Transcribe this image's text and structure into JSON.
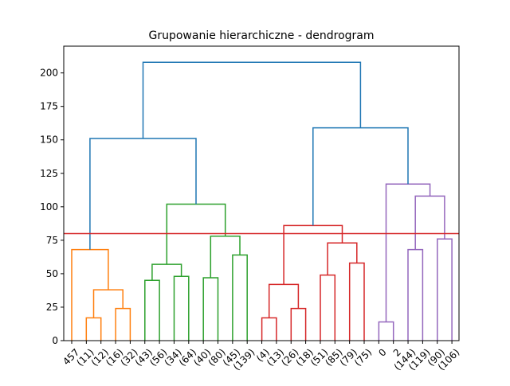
{
  "chart_data": {
    "type": "dendrogram",
    "title": "Grupowanie hierarchiczne - dendrogram",
    "xlabel": "",
    "ylabel": "",
    "ylim": [
      0,
      220
    ],
    "yticks": [
      0,
      25,
      50,
      75,
      100,
      125,
      150,
      175,
      200
    ],
    "leaf_labels": [
      "457",
      "(11)",
      "(12)",
      "(16)",
      "(32)",
      "(43)",
      "(56)",
      "(34)",
      "(64)",
      "(40)",
      "(80)",
      "(45)",
      "(139)",
      "(4)",
      "(13)",
      "(26)",
      "(18)",
      "(51)",
      "(85)",
      "(79)",
      "(75)",
      "0",
      "2",
      "(144)",
      "(119)",
      "(90)",
      "(106)"
    ],
    "cut_height": 80,
    "cut_line_color": "#d62728",
    "above_threshold_color": "#1f77b4",
    "cluster_colors": [
      "#ff7f0e",
      "#2ca02c",
      "#d62728",
      "#9467bd"
    ],
    "merges": [
      {
        "left_x": 1,
        "right_x": 2,
        "left_h": 0,
        "right_h": 0,
        "height": 17,
        "color": "#ff7f0e"
      },
      {
        "left_x": 3,
        "right_x": 4,
        "left_h": 0,
        "right_h": 0,
        "height": 24,
        "color": "#ff7f0e"
      },
      {
        "left_x": 1.5,
        "right_x": 3.5,
        "left_h": 17,
        "right_h": 24,
        "height": 38,
        "color": "#ff7f0e"
      },
      {
        "left_x": 0,
        "right_x": 2.5,
        "left_h": 0,
        "right_h": 38,
        "height": 68,
        "color": "#ff7f0e"
      },
      {
        "left_x": 5,
        "right_x": 6,
        "left_h": 0,
        "right_h": 0,
        "height": 45,
        "color": "#2ca02c"
      },
      {
        "left_x": 7,
        "right_x": 8,
        "left_h": 0,
        "right_h": 0,
        "height": 48,
        "color": "#2ca02c"
      },
      {
        "left_x": 5.5,
        "right_x": 7.5,
        "left_h": 45,
        "right_h": 48,
        "height": 57,
        "color": "#2ca02c"
      },
      {
        "left_x": 9,
        "right_x": 10,
        "left_h": 0,
        "right_h": 0,
        "height": 47,
        "color": "#2ca02c"
      },
      {
        "left_x": 11,
        "right_x": 12,
        "left_h": 0,
        "right_h": 0,
        "height": 64,
        "color": "#2ca02c"
      },
      {
        "left_x": 9.5,
        "right_x": 11.5,
        "left_h": 47,
        "right_h": 64,
        "height": 78,
        "color": "#2ca02c"
      },
      {
        "left_x": 6.5,
        "right_x": 10.5,
        "left_h": 57,
        "right_h": 78,
        "height": 102,
        "color": "#2ca02c"
      },
      {
        "left_x": 13,
        "right_x": 14,
        "left_h": 0,
        "right_h": 0,
        "height": 17,
        "color": "#d62728"
      },
      {
        "left_x": 15,
        "right_x": 16,
        "left_h": 0,
        "right_h": 0,
        "height": 24,
        "color": "#d62728"
      },
      {
        "left_x": 13.5,
        "right_x": 15.5,
        "left_h": 17,
        "right_h": 24,
        "height": 42,
        "color": "#d62728"
      },
      {
        "left_x": 17,
        "right_x": 18,
        "left_h": 0,
        "right_h": 0,
        "height": 49,
        "color": "#d62728"
      },
      {
        "left_x": 19,
        "right_x": 20,
        "left_h": 0,
        "right_h": 0,
        "height": 58,
        "color": "#d62728"
      },
      {
        "left_x": 17.5,
        "right_x": 19.5,
        "left_h": 49,
        "right_h": 58,
        "height": 73,
        "color": "#d62728"
      },
      {
        "left_x": 14.5,
        "right_x": 18.5,
        "left_h": 42,
        "right_h": 73,
        "height": 86,
        "color": "#d62728"
      },
      {
        "left_x": 21,
        "right_x": 22,
        "left_h": 0,
        "right_h": 0,
        "height": 14,
        "color": "#9467bd"
      },
      {
        "left_x": 23,
        "right_x": 24,
        "left_h": 0,
        "right_h": 0,
        "height": 68,
        "color": "#9467bd"
      },
      {
        "left_x": 25,
        "right_x": 26,
        "left_h": 0,
        "right_h": 0,
        "height": 76,
        "color": "#9467bd"
      },
      {
        "left_x": 23.5,
        "right_x": 25.5,
        "left_h": 68,
        "right_h": 76,
        "height": 108,
        "color": "#9467bd"
      },
      {
        "left_x": 21.5,
        "right_x": 24.5,
        "left_h": 14,
        "right_h": 108,
        "height": 117,
        "color": "#9467bd"
      },
      {
        "left_x": 1.25,
        "right_x": 8.5,
        "left_h": 68,
        "right_h": 102,
        "height": 151,
        "color": "#1f77b4"
      },
      {
        "left_x": 16.5,
        "right_x": 23,
        "left_h": 86,
        "right_h": 117,
        "height": 159,
        "color": "#1f77b4"
      },
      {
        "left_x": 4.875,
        "right_x": 19.75,
        "left_h": 151,
        "right_h": 159,
        "height": 208,
        "color": "#1f77b4"
      }
    ]
  }
}
